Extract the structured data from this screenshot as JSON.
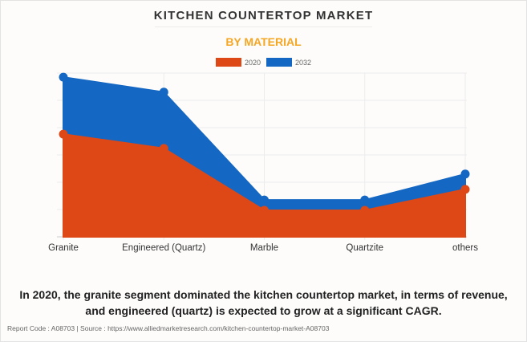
{
  "title": "KITCHEN COUNTERTOP MARKET",
  "subtitle": "BY MATERIAL",
  "caption_line1": "In 2020, the granite segment dominated the kitchen countertop market, in terms of revenue,",
  "caption_line2": "and engineered (quartz) is expected to grow at a significant CAGR.",
  "footer": "Report Code : A08703  |  Source : https://www.alliedmarketresearch.com/kitchen-countertop-market-A08703",
  "chart_data": {
    "type": "area",
    "title": "KITCHEN COUNTERTOP MARKET",
    "subtitle": "BY MATERIAL",
    "xlabel": "",
    "ylabel": "",
    "y_units": "relative (no y-axis tick labels shown; values in gridline units)",
    "ylim": [
      0,
      6
    ],
    "grid": true,
    "legend_position": "top-center",
    "categories": [
      "Granite",
      "Engineered (Quartz)",
      "Marble",
      "Quartzite",
      "others"
    ],
    "series": [
      {
        "name": "2032",
        "color": "#1467c2",
        "values": [
          5.85,
          5.3,
          1.35,
          1.35,
          2.3
        ]
      },
      {
        "name": "2020",
        "color": "#dd4816",
        "values": [
          3.76,
          3.24,
          0.97,
          0.97,
          1.74
        ]
      }
    ]
  }
}
